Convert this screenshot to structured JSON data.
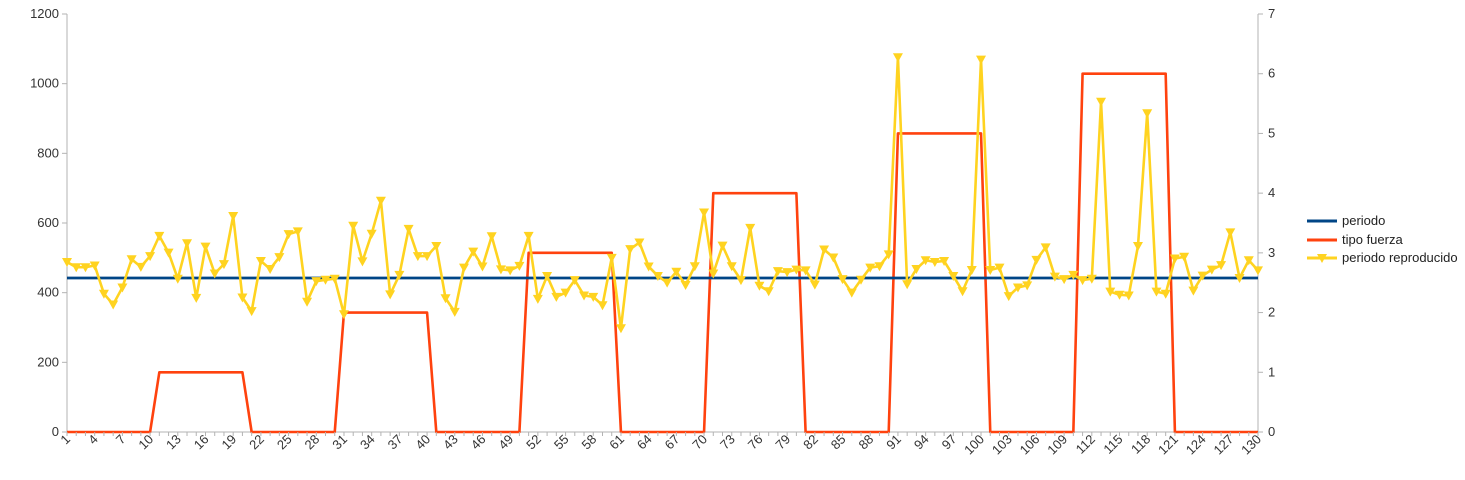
{
  "chart_data": {
    "type": "line",
    "x_start": 1,
    "x_end": 130,
    "x_tick_labels": [
      "1",
      "4",
      "7",
      "10",
      "13",
      "16",
      "19",
      "22",
      "25",
      "28",
      "31",
      "34",
      "37",
      "40",
      "43",
      "46",
      "49",
      "52",
      "55",
      "58",
      "61",
      "64",
      "67",
      "70",
      "73",
      "76",
      "79",
      "82",
      "85",
      "88",
      "91",
      "94",
      "97",
      "100",
      "103",
      "106",
      "109",
      "112",
      "115",
      "118",
      "121",
      "124",
      "127",
      "130"
    ],
    "y_left": {
      "min": 0,
      "max": 1200,
      "ticks": [
        "0",
        "200",
        "400",
        "600",
        "800",
        "1000",
        "1200"
      ]
    },
    "y_right": {
      "min": 0,
      "max": 7,
      "ticks": [
        "0",
        "1",
        "2",
        "3",
        "4",
        "5",
        "6",
        "7"
      ]
    },
    "grid": false,
    "legend_position": "right",
    "colors": {
      "periodo": "#004586",
      "tipo_fuerza": "#ff420e",
      "periodo_reproducido": "#ffd320"
    },
    "series": [
      {
        "name": "periodo",
        "axis": "left",
        "values": "constant",
        "constant": 442
      },
      {
        "name": "tipo fuerza",
        "axis": "right",
        "segments": [
          {
            "from": 1,
            "to": 10,
            "value": 0
          },
          {
            "from": 11,
            "to": 20,
            "value": 1
          },
          {
            "from": 21,
            "to": 30,
            "value": 0
          },
          {
            "from": 31,
            "to": 40,
            "value": 2
          },
          {
            "from": 41,
            "to": 50,
            "value": 0
          },
          {
            "from": 51,
            "to": 60,
            "value": 3
          },
          {
            "from": 61,
            "to": 70,
            "value": 0
          },
          {
            "from": 71,
            "to": 80,
            "value": 4
          },
          {
            "from": 81,
            "to": 90,
            "value": 0
          },
          {
            "from": 91,
            "to": 100,
            "value": 5
          },
          {
            "from": 101,
            "to": 110,
            "value": 0
          },
          {
            "from": 111,
            "to": 120,
            "value": 6
          },
          {
            "from": 121,
            "to": 130,
            "value": 0
          }
        ]
      },
      {
        "name": "periodo reproducido",
        "axis": "left",
        "values": [
          488,
          473,
          473,
          478,
          397,
          366,
          415,
          496,
          474,
          505,
          563,
          515,
          440,
          542,
          385,
          532,
          455,
          482,
          620,
          386,
          347,
          491,
          468,
          502,
          568,
          576,
          374,
          433,
          437,
          440,
          338,
          592,
          490,
          569,
          664,
          395,
          451,
          583,
          505,
          505,
          534,
          384,
          345,
          472,
          518,
          475,
          562,
          467,
          464,
          477,
          563,
          382,
          448,
          388,
          400,
          436,
          392,
          388,
          364,
          500,
          298,
          525,
          544,
          475,
          448,
          429,
          460,
          422,
          476,
          630,
          455,
          535,
          476,
          436,
          586,
          420,
          404,
          462,
          459,
          466,
          464,
          423,
          524,
          501,
          439,
          400,
          437,
          472,
          476,
          510,
          1076,
          424,
          468,
          493,
          488,
          491,
          448,
          404,
          465,
          1069,
          465,
          472,
          390,
          415,
          421,
          494,
          530,
          446,
          439,
          451,
          436,
          440,
          948,
          403,
          394,
          392,
          534,
          915,
          403,
          397,
          498,
          503,
          406,
          449,
          466,
          479,
          573,
          442,
          493,
          464
        ]
      }
    ]
  }
}
